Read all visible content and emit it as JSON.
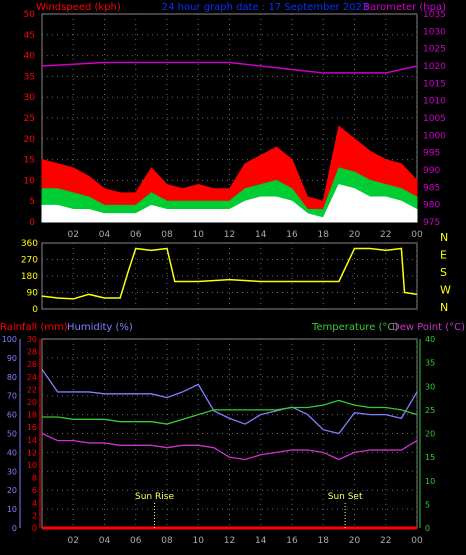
{
  "header": {
    "left_label": "Windspeed (kph)",
    "center_label": "24 hour graph date : 17 September 2023",
    "right_label": "Barometer (hpa)"
  },
  "colors": {
    "wind_gust": "#ff0000",
    "wind_avg": "#00cc33",
    "wind_speed": "#ffffff",
    "barometer": "#cc00cc",
    "direction": "#ffff00",
    "humidity": "#8080ff",
    "temperature": "#33cc33",
    "dewpoint": "#cc33cc",
    "rain": "#ff0000",
    "grid": "#ffffff"
  },
  "x_axis": {
    "ticks": [
      "02",
      "04",
      "06",
      "08",
      "10",
      "12",
      "14",
      "16",
      "18",
      "20",
      "22",
      "00"
    ]
  },
  "chart_data": [
    {
      "type": "area",
      "id": "wind",
      "title": "Windspeed (kph)",
      "ylim": [
        0,
        50
      ],
      "yticks": [
        "0",
        "5",
        "10",
        "15",
        "20",
        "25",
        "30",
        "35",
        "40",
        "45",
        "50"
      ],
      "series": [
        {
          "name": "Gust",
          "x": [
            0,
            1,
            2,
            3,
            4,
            5,
            6,
            7,
            8,
            9,
            10,
            11,
            12,
            13,
            14,
            15,
            16,
            17,
            18,
            19,
            20,
            21,
            22,
            23,
            24
          ],
          "values": [
            15,
            14,
            13,
            11,
            8,
            7,
            7,
            13,
            9,
            8,
            9,
            8,
            8,
            14,
            16,
            18,
            15,
            6,
            5,
            23,
            20,
            17,
            15,
            14,
            10
          ]
        },
        {
          "name": "Average",
          "x": [
            0,
            1,
            2,
            3,
            4,
            5,
            6,
            7,
            8,
            9,
            10,
            11,
            12,
            13,
            14,
            15,
            16,
            17,
            18,
            19,
            20,
            21,
            22,
            23,
            24
          ],
          "values": [
            8,
            8,
            7,
            6,
            4,
            4,
            4,
            7,
            5,
            5,
            5,
            5,
            5,
            8,
            9,
            10,
            8,
            3,
            3,
            13,
            12,
            10,
            9,
            8,
            6
          ]
        },
        {
          "name": "Speed",
          "x": [
            0,
            1,
            2,
            3,
            4,
            5,
            6,
            7,
            8,
            9,
            10,
            11,
            12,
            13,
            14,
            15,
            16,
            17,
            18,
            19,
            20,
            21,
            22,
            23,
            24
          ],
          "values": [
            4,
            4,
            3,
            3,
            2,
            2,
            2,
            4,
            3,
            3,
            3,
            3,
            3,
            5,
            6,
            6,
            5,
            2,
            1,
            9,
            8,
            6,
            6,
            5,
            3
          ]
        }
      ]
    },
    {
      "type": "line",
      "id": "barometer",
      "title": "Barometer (hpa)",
      "ylim": [
        975,
        1035
      ],
      "yticks": [
        "975",
        "980",
        "985",
        "990",
        "995",
        "1000",
        "1005",
        "1010",
        "1015",
        "1020",
        "1025",
        "1030",
        "1035"
      ],
      "series": [
        {
          "name": "Barometer",
          "x": [
            0,
            2,
            4,
            6,
            8,
            10,
            12,
            14,
            16,
            18,
            20,
            22,
            23,
            24
          ],
          "values": [
            1020,
            1020.5,
            1021,
            1021,
            1021,
            1021,
            1021,
            1020,
            1019,
            1018,
            1018,
            1018,
            1019,
            1020
          ]
        }
      ]
    },
    {
      "type": "line",
      "id": "direction",
      "ylim": [
        0,
        360
      ],
      "yticks": [
        "0",
        "90",
        "180",
        "270",
        "360"
      ],
      "compass": [
        "N",
        "W",
        "S",
        "E",
        "N"
      ],
      "series": [
        {
          "name": "Direction",
          "x": [
            0,
            1,
            2,
            3,
            4,
            5,
            5.5,
            6,
            7,
            8,
            8.5,
            9,
            10,
            12,
            14,
            16,
            17,
            18,
            19,
            20,
            21,
            22,
            23,
            23.2,
            24
          ],
          "values": [
            70,
            60,
            55,
            80,
            60,
            60,
            200,
            330,
            320,
            330,
            150,
            150,
            150,
            160,
            150,
            150,
            150,
            150,
            150,
            330,
            330,
            320,
            330,
            90,
            80
          ]
        }
      ]
    },
    {
      "type": "line",
      "id": "weather",
      "humidity_ylim": [
        0,
        100
      ],
      "humidity_yticks": [
        "0",
        "10",
        "20",
        "30",
        "40",
        "50",
        "60",
        "70",
        "80",
        "90",
        "100"
      ],
      "rain_ylim": [
        0,
        30
      ],
      "rain_yticks": [
        "0",
        "2",
        "4",
        "6",
        "8",
        "10",
        "12",
        "14",
        "16",
        "18",
        "20",
        "22",
        "24",
        "26",
        "28",
        "30"
      ],
      "temp_ylim": [
        0,
        40
      ],
      "temp_yticks": [
        "0",
        "5",
        "10",
        "15",
        "20",
        "25",
        "30",
        "35",
        "40"
      ],
      "labels": {
        "rainfall": "Rainfall (mm)",
        "humidity": "Humidity (%)",
        "temperature": "Temperature (°C)",
        "dewpoint": "Dew Point (°C)"
      },
      "markers": [
        {
          "label": "Sun Rise",
          "x": 7.2
        },
        {
          "label": "Sun Set",
          "x": 19.4
        }
      ],
      "series": [
        {
          "name": "Humidity",
          "axis": "humidity",
          "x": [
            0,
            1,
            2,
            3,
            4,
            5,
            6,
            7,
            8,
            9,
            10,
            11,
            12,
            13,
            14,
            15,
            16,
            17,
            18,
            19,
            20,
            21,
            22,
            23,
            24
          ],
          "values": [
            84,
            72,
            72,
            72,
            71,
            71,
            71,
            71,
            69,
            72,
            76,
            62,
            58,
            55,
            60,
            62,
            64,
            60,
            52,
            50,
            61,
            60,
            60,
            58,
            72
          ]
        },
        {
          "name": "Temperature",
          "axis": "temp",
          "x": [
            0,
            1,
            2,
            3,
            4,
            5,
            6,
            7,
            8,
            9,
            10,
            11,
            12,
            13,
            14,
            15,
            16,
            17,
            18,
            19,
            20,
            21,
            22,
            23,
            24
          ],
          "values": [
            23.5,
            23.5,
            23,
            23,
            23,
            22.5,
            22.5,
            22.5,
            22,
            23,
            24,
            25,
            25,
            25,
            25,
            25,
            25.5,
            25.5,
            26,
            27,
            26,
            25.5,
            25.5,
            25,
            24
          ]
        },
        {
          "name": "Dew Point",
          "axis": "temp",
          "x": [
            0,
            1,
            2,
            3,
            4,
            5,
            6,
            7,
            8,
            9,
            10,
            11,
            12,
            13,
            14,
            15,
            16,
            17,
            18,
            19,
            20,
            21,
            22,
            23,
            24
          ],
          "values": [
            20,
            18.5,
            18.5,
            18,
            18,
            17.5,
            17.5,
            17.5,
            17,
            17.5,
            17.5,
            17,
            15,
            14.5,
            15.5,
            16,
            16.5,
            16.5,
            16,
            14.5,
            16,
            16.5,
            16.5,
            16.5,
            18.5
          ]
        },
        {
          "name": "Rainfall",
          "axis": "rain",
          "x": [
            0,
            24
          ],
          "values": [
            0,
            0
          ]
        }
      ]
    }
  ]
}
